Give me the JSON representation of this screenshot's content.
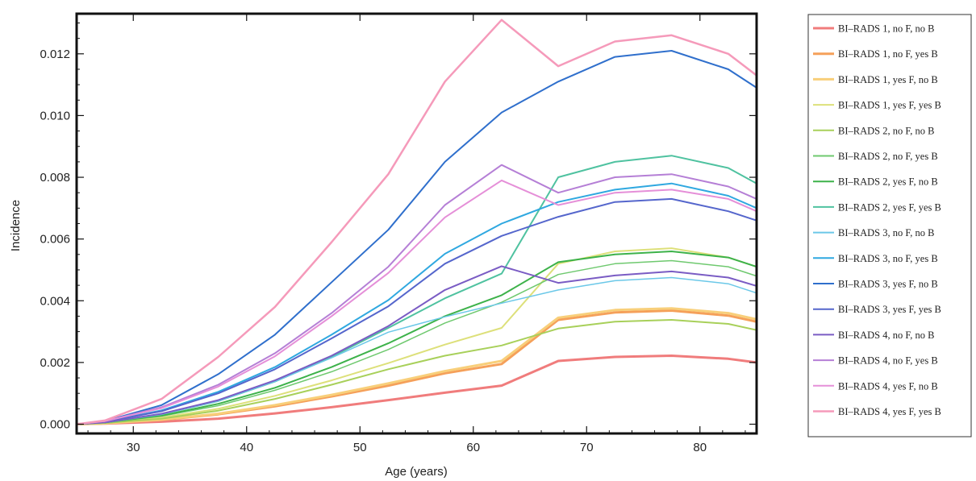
{
  "chart_data": {
    "type": "line",
    "title": "",
    "xlabel": "Age (years)",
    "ylabel": "Incidence",
    "xlim": [
      25,
      85
    ],
    "ylim": [
      -0.0003,
      0.0133
    ],
    "xticks": [
      30,
      40,
      50,
      60,
      70,
      80
    ],
    "xtick_labels": [
      "30",
      "40",
      "50",
      "60",
      "70",
      "80"
    ],
    "yticks": [
      0.0,
      0.002,
      0.004,
      0.006,
      0.008,
      0.01,
      0.012
    ],
    "ytick_labels": [
      "0.000",
      "0.002",
      "0.004",
      "0.006",
      "0.008",
      "0.010",
      "0.012"
    ],
    "grid": false,
    "legend": "right",
    "x": [
      25,
      27.5,
      32.5,
      37.5,
      42.5,
      47.5,
      52.5,
      57.5,
      62.5,
      67.5,
      72.5,
      77.5,
      82.5,
      85
    ],
    "series": [
      {
        "name": "BI–RADS 1, no F, no B",
        "color": "#f07c7c",
        "width": 3,
        "values": [
          0.0,
          2e-05,
          8e-05,
          0.00018,
          0.00035,
          0.00055,
          0.00078,
          0.00102,
          0.00125,
          0.00205,
          0.00218,
          0.00222,
          0.00212,
          0.002
        ]
      },
      {
        "name": "BI–RADS 1, no F, yes B",
        "color": "#f5a05a",
        "width": 3,
        "values": [
          0.0,
          3e-05,
          0.00014,
          0.00032,
          0.00058,
          0.0009,
          0.00125,
          0.00165,
          0.00195,
          0.00338,
          0.00362,
          0.00368,
          0.00352,
          0.00332
        ]
      },
      {
        "name": "BI–RADS 1, yes F, no B",
        "color": "#f8cf7a",
        "width": 3,
        "values": [
          0.0,
          3e-05,
          0.00015,
          0.00034,
          0.00062,
          0.00095,
          0.00132,
          0.00172,
          0.00205,
          0.00345,
          0.0037,
          0.00375,
          0.0036,
          0.0034
        ]
      },
      {
        "name": "BI–RADS 1, yes F, yes B",
        "color": "#dde07a",
        "width": 2,
        "values": [
          0.0,
          4e-05,
          0.00022,
          0.0005,
          0.00092,
          0.00142,
          0.00198,
          0.00258,
          0.00312,
          0.0052,
          0.0056,
          0.0057,
          0.0054,
          0.0051
        ]
      },
      {
        "name": "BI–RADS 2, no F, no B",
        "color": "#a8d05a",
        "width": 2,
        "values": [
          0.0,
          4e-05,
          0.00018,
          0.00044,
          0.00082,
          0.00128,
          0.00178,
          0.00222,
          0.00255,
          0.0031,
          0.00332,
          0.00338,
          0.00325,
          0.00305
        ]
      },
      {
        "name": "BI–RADS 2, no F, yes B",
        "color": "#6fc96f",
        "width": 1.5,
        "values": [
          0.0,
          5e-05,
          0.00026,
          0.0006,
          0.0011,
          0.0017,
          0.00242,
          0.00328,
          0.00395,
          0.00485,
          0.0052,
          0.0053,
          0.0051,
          0.0048
        ]
      },
      {
        "name": "BI–RADS 2, yes F, no B",
        "color": "#3db24a",
        "width": 2,
        "values": [
          0.0,
          6e-05,
          0.00028,
          0.00066,
          0.00118,
          0.00185,
          0.00262,
          0.0035,
          0.00418,
          0.00525,
          0.0055,
          0.0056,
          0.0054,
          0.0051
        ]
      },
      {
        "name": "BI–RADS 2, yes F, yes B",
        "color": "#4fc2a0",
        "width": 2,
        "values": [
          0.0,
          6e-05,
          0.00032,
          0.00075,
          0.00138,
          0.00218,
          0.00312,
          0.00408,
          0.00488,
          0.008,
          0.0085,
          0.0087,
          0.0083,
          0.0078
        ]
      },
      {
        "name": "BI–RADS 3, no F, no B",
        "color": "#6bc8e8",
        "width": 1.5,
        "values": [
          0.0,
          6e-05,
          0.00032,
          0.00075,
          0.00138,
          0.00215,
          0.00298,
          0.00348,
          0.00392,
          0.00435,
          0.00465,
          0.00475,
          0.00455,
          0.00425
        ]
      },
      {
        "name": "BI–RADS 3, no F, yes B",
        "color": "#2fa8e0",
        "width": 2,
        "values": [
          0.0,
          8e-05,
          0.00045,
          0.00105,
          0.00185,
          0.0029,
          0.00402,
          0.00552,
          0.0065,
          0.0072,
          0.0076,
          0.0078,
          0.0074,
          0.007
        ]
      },
      {
        "name": "BI–RADS 3, yes F, no B",
        "color": "#2f6fcc",
        "width": 2,
        "values": [
          0.0,
          0.0001,
          0.00062,
          0.00162,
          0.0029,
          0.0046,
          0.0063,
          0.0085,
          0.0101,
          0.0111,
          0.0119,
          0.0121,
          0.0115,
          0.0109
        ]
      },
      {
        "name": "BI–RADS 3, yes F, yes B",
        "color": "#5566cc",
        "width": 2,
        "values": [
          0.0,
          8e-05,
          0.00042,
          0.001,
          0.00178,
          0.00278,
          0.00382,
          0.0052,
          0.0061,
          0.00672,
          0.0072,
          0.0073,
          0.0069,
          0.0066
        ]
      },
      {
        "name": "BI–RADS 4, no F, no B",
        "color": "#7a5cc4",
        "width": 2,
        "values": [
          0.0,
          6e-05,
          0.00034,
          0.00078,
          0.00142,
          0.00222,
          0.00318,
          0.00435,
          0.00512,
          0.00458,
          0.00482,
          0.00495,
          0.00475,
          0.00448
        ]
      },
      {
        "name": "BI–RADS 4, no F, yes B",
        "color": "#b57fd6",
        "width": 2,
        "values": [
          0.0,
          0.0001,
          0.00055,
          0.00128,
          0.0023,
          0.0036,
          0.0051,
          0.0071,
          0.0084,
          0.0075,
          0.008,
          0.0081,
          0.0077,
          0.0073
        ]
      },
      {
        "name": "BI–RADS 4, yes F, no B",
        "color": "#e58fd8",
        "width": 2,
        "values": [
          0.0,
          0.0001,
          0.00052,
          0.00122,
          0.0022,
          0.0035,
          0.0049,
          0.0067,
          0.0079,
          0.0071,
          0.0075,
          0.0076,
          0.0073,
          0.0069
        ]
      },
      {
        "name": "BI–RADS 4, yes F, yes B",
        "color": "#f59aba",
        "width": 2.5,
        "values": [
          0.0,
          0.00012,
          0.00082,
          0.00218,
          0.0038,
          0.0059,
          0.0081,
          0.0111,
          0.0131,
          0.0116,
          0.0124,
          0.0126,
          0.012,
          0.0113
        ]
      }
    ]
  }
}
